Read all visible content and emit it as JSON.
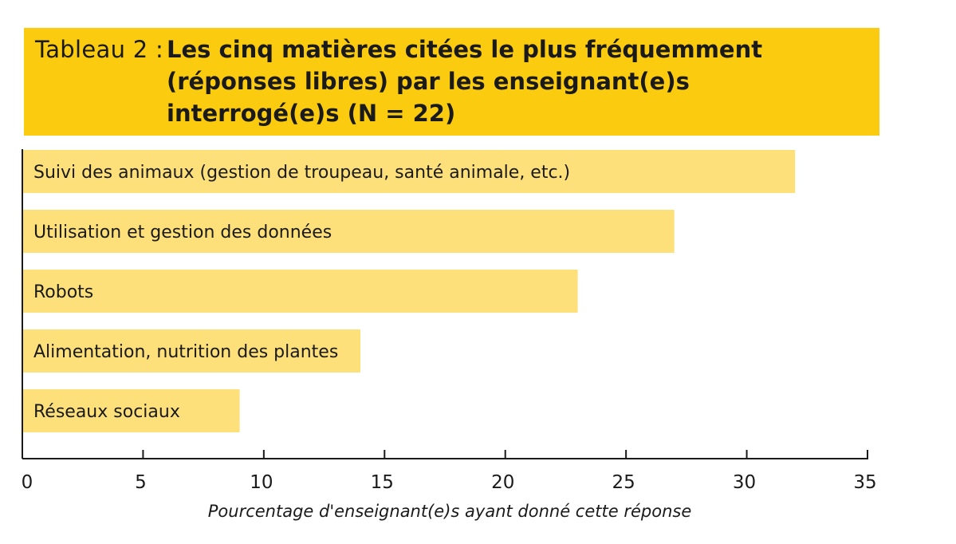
{
  "title": {
    "prefix": "Tableau 2 :",
    "main": "Les cinq matières citées le plus fréquemment (réponses libres) par les enseignant(e)s interrogé(e)s (N = 22)"
  },
  "colors": {
    "header": "#fbcb0f",
    "bar": "#fde07a",
    "axis": "#1a1a1a"
  },
  "chart_data": {
    "type": "bar",
    "orientation": "horizontal",
    "categories": [
      "Suivi des animaux (gestion de troupeau, santé animale, etc.)",
      "Utilisation et gestion des données",
      "Robots",
      "Alimentation, nutrition des plantes",
      "Réseaux sociaux"
    ],
    "values": [
      32,
      27,
      23,
      14,
      9
    ],
    "xlabel": "Pourcentage d'enseignant(e)s ayant donné cette réponse",
    "ylabel": "",
    "xlim": [
      0,
      35
    ],
    "xticks": [
      0,
      5,
      10,
      15,
      20,
      25,
      30,
      35
    ],
    "xtick_labels": [
      "0",
      "5",
      "10",
      "15",
      "20",
      "25",
      "30",
      "35"
    ],
    "grid": false,
    "labels_inside_bars": true
  }
}
